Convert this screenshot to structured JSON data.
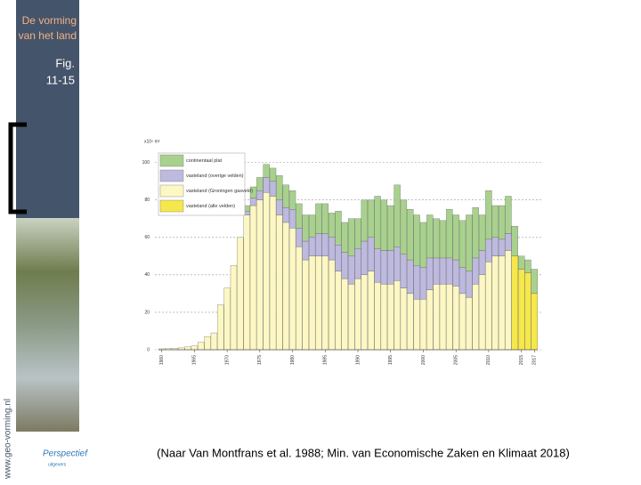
{
  "slide": {
    "title_lines": [
      "De vorming",
      "van het land"
    ],
    "fig_lines": [
      "Fig.",
      "11-15"
    ],
    "website": "www.geo-vorming.nl",
    "logo": "Perspectief",
    "logo_sub": "uitgevers",
    "caption": "(Naar  Van Montfrans et al. 1988; Min. van Economische Zaken en Klimaat 2018)"
  },
  "chart_data": {
    "type": "stacked_bar",
    "ylabel": "x10⁹ m³",
    "x": [
      1960,
      1961,
      1962,
      1963,
      1964,
      1965,
      1966,
      1967,
      1968,
      1969,
      1970,
      1971,
      1972,
      1973,
      1974,
      1975,
      1976,
      1977,
      1978,
      1979,
      1980,
      1981,
      1982,
      1983,
      1984,
      1985,
      1986,
      1987,
      1988,
      1989,
      1990,
      1991,
      1992,
      1993,
      1994,
      1995,
      1996,
      1997,
      1998,
      1999,
      2000,
      2001,
      2002,
      2003,
      2004,
      2005,
      2006,
      2007,
      2008,
      2009,
      2010,
      2011,
      2012,
      2013,
      2014,
      2015,
      2016,
      2017
    ],
    "xlim": [
      1959.5,
      2017.5
    ],
    "xticks": [
      1960,
      1965,
      1970,
      1975,
      1980,
      1985,
      1990,
      1995,
      2000,
      2005,
      2010,
      2015,
      2017
    ],
    "ylim": [
      0,
      106
    ],
    "yticks": [
      0,
      20,
      40,
      60,
      80,
      100
    ],
    "grid": true,
    "series": [
      {
        "name": "vasteland (Groningen gasveld)",
        "color": "#fdf7c3",
        "values": [
          0.5,
          0.6,
          0.8,
          1,
          1.5,
          2,
          4,
          7,
          9,
          24,
          33,
          45,
          60,
          72,
          77,
          80,
          84,
          82,
          72,
          68,
          65,
          55,
          48,
          50,
          50,
          50,
          48,
          42,
          38,
          35,
          38,
          40,
          42,
          36,
          35,
          35,
          37,
          33,
          30,
          27,
          27,
          32,
          35,
          35,
          35,
          34,
          30,
          28,
          35,
          40,
          47,
          50,
          50,
          53,
          null,
          null,
          null,
          null
        ]
      },
      {
        "name": "vasteland (alle velden)",
        "color": "#f6e84a",
        "values": [
          null,
          null,
          null,
          null,
          null,
          null,
          null,
          null,
          null,
          null,
          null,
          null,
          null,
          null,
          null,
          null,
          null,
          null,
          null,
          null,
          null,
          null,
          null,
          null,
          null,
          null,
          null,
          null,
          null,
          null,
          null,
          null,
          null,
          null,
          null,
          null,
          null,
          null,
          null,
          null,
          null,
          null,
          null,
          null,
          null,
          null,
          null,
          null,
          null,
          null,
          null,
          null,
          null,
          null,
          50,
          43,
          41,
          30
        ]
      },
      {
        "name": "vasteland (overige velden)",
        "color": "#bdb9df",
        "values": [
          0,
          0,
          0,
          0,
          0,
          0,
          0,
          0,
          0,
          0,
          0,
          0,
          0,
          2,
          4,
          5,
          8,
          8,
          8,
          8,
          10,
          10,
          10,
          10,
          12,
          12,
          12,
          14,
          14,
          15,
          16,
          18,
          18,
          18,
          18,
          18,
          18,
          18,
          18,
          18,
          17,
          17,
          14,
          14,
          14,
          14,
          14,
          14,
          14,
          13,
          12,
          10,
          9,
          9,
          null,
          null,
          null,
          null
        ]
      },
      {
        "name": "continentaal plat",
        "color": "#a9d18e",
        "values": [
          0,
          0,
          0,
          0,
          0,
          0,
          0,
          0,
          0,
          0,
          0,
          0,
          0,
          3,
          6,
          7,
          7,
          7,
          13,
          12,
          10,
          13,
          14,
          12,
          16,
          16,
          13,
          18,
          16,
          20,
          16,
          22,
          20,
          28,
          27,
          24,
          33,
          29,
          27,
          27,
          24,
          23,
          21,
          20,
          26,
          24,
          25,
          30,
          27,
          19,
          26,
          17,
          18,
          20,
          16,
          7,
          7,
          13
        ]
      }
    ],
    "legend_order": [
      3,
      2,
      0,
      1
    ]
  }
}
